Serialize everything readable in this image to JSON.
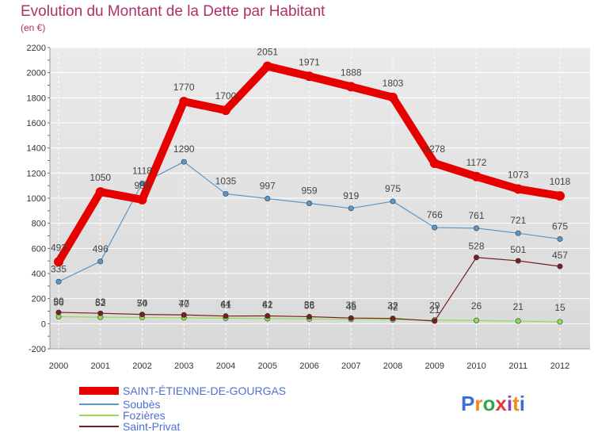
{
  "header": {
    "title": "Evolution du Montant de la Dette par Habitant",
    "subtitle": "(en €)"
  },
  "brand": {
    "name": "Proxiti"
  },
  "chart_data": {
    "type": "line",
    "title": "Evolution du Montant de la Dette par Habitant",
    "subtitle": "(en €)",
    "x": [
      "2000",
      "2001",
      "2002",
      "2003",
      "2004",
      "2005",
      "2006",
      "2007",
      "2008",
      "2009",
      "2010",
      "2011",
      "2012"
    ],
    "ylim": [
      -200,
      2200
    ],
    "yticks": [
      -200,
      0,
      200,
      400,
      600,
      800,
      1000,
      1200,
      1400,
      1600,
      1800,
      2000,
      2200
    ],
    "grid": true,
    "legend_position": "bottom-left",
    "series": [
      {
        "name": "SAINT-ÉTIENNE-DE-GOURGAS",
        "color": "#e60000",
        "values": [
          493,
          1050,
          988,
          1770,
          1700,
          2051,
          1971,
          1888,
          1803,
          1278,
          1172,
          1073,
          1018
        ],
        "labels": [
          "493",
          "1050",
          "988",
          "1770",
          "1700",
          "2051",
          "1971",
          "1888",
          "1803",
          "1278",
          "1172",
          "1073",
          "1018"
        ]
      },
      {
        "name": "Soubès",
        "color": "#5b97c9",
        "values": [
          335,
          496,
          1118,
          1290,
          1035,
          997,
          959,
          919,
          975,
          766,
          761,
          721,
          675
        ],
        "labels": [
          "335",
          "496",
          "1118",
          "1290",
          "1035",
          "997",
          "959",
          "919",
          "975",
          "766",
          "761",
          "721",
          "675"
        ]
      },
      {
        "name": "Fozières",
        "color": "#8ee04f",
        "values": [
          56,
          52,
          50,
          47,
          44,
          41,
          38,
          35,
          32,
          29,
          26,
          21,
          15
        ],
        "labels": [
          "56",
          "52",
          "50",
          "47",
          "44",
          "41",
          "38",
          "35",
          "32",
          "29",
          "26",
          "21",
          "15"
        ]
      },
      {
        "name": "Saint-Privat",
        "color": "#7a1f1f",
        "values": [
          90,
          83,
          74,
          70,
          61,
          62,
          56,
          45,
          42,
          21,
          528,
          501,
          457
        ],
        "labels": [
          "90",
          "83",
          "74",
          "70",
          "61",
          "62",
          "56",
          "45",
          "42",
          "21",
          "528",
          "501",
          "457"
        ]
      }
    ]
  }
}
